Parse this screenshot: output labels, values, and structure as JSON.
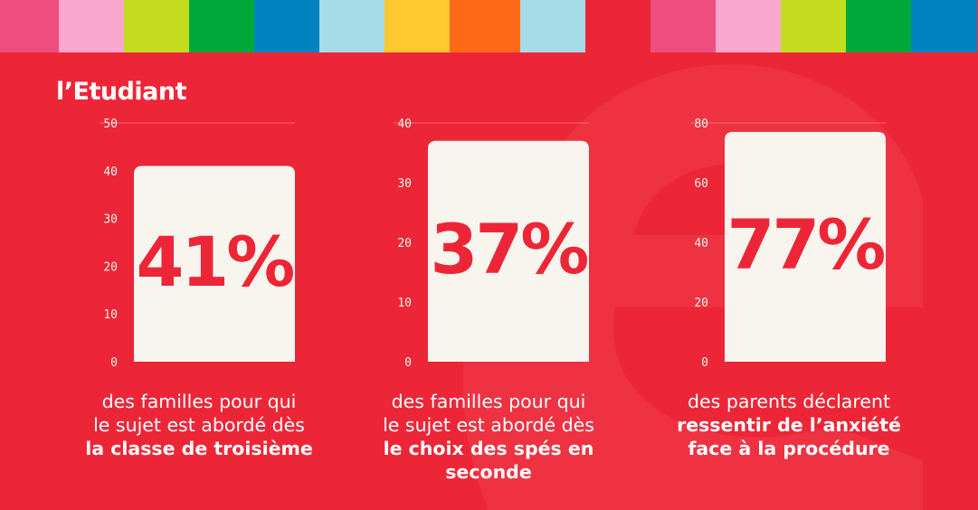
{
  "logo_text": "l’Etudiant",
  "colors": {
    "background": "#ed2637",
    "bar": "#f8f5ee",
    "stripe": [
      "#ee4d7f",
      "#f9a8d0",
      "#c3dc1f",
      "#00a83a",
      "#0084c1",
      "#a6dbe8",
      "#ffc82e",
      "#ff6a1a",
      "#a6dbe8",
      "#ed2637",
      "#ee4d7f",
      "#f9a8d0",
      "#c3dc1f",
      "#00a83a",
      "#0084c1"
    ]
  },
  "chart_data": [
    {
      "type": "bar",
      "categories": [
        "des familles pour qui le sujet est abordé dès la classe de troisième"
      ],
      "values": [
        41
      ],
      "data_label": "41%",
      "ylim": [
        0,
        50
      ],
      "yticks": [
        "0",
        "10",
        "20",
        "30",
        "40",
        "50"
      ],
      "grid": true
    },
    {
      "type": "bar",
      "categories": [
        "des familles pour qui le sujet est abordé dès le choix des spés en seconde"
      ],
      "values": [
        37
      ],
      "data_label": "37%",
      "ylim": [
        0,
        40
      ],
      "yticks": [
        "0",
        "10",
        "20",
        "30",
        "40"
      ],
      "grid": true
    },
    {
      "type": "bar",
      "categories": [
        "des parents déclarent ressentir de l’anxiété face à la procédure"
      ],
      "values": [
        77
      ],
      "data_label": "77%",
      "ylim": [
        0,
        80
      ],
      "yticks": [
        "0",
        "20",
        "40",
        "60",
        "80"
      ],
      "grid": true
    }
  ],
  "captions": [
    {
      "normal": [
        "des familles pour qui",
        "le sujet est abordé dès"
      ],
      "bold": [
        "la classe de troisième"
      ]
    },
    {
      "normal": [
        "des familles pour qui",
        "le sujet est abordé dès"
      ],
      "bold": [
        "le choix des spés en",
        "seconde"
      ]
    },
    {
      "normal": [
        "des parents déclarent"
      ],
      "bold": [
        "ressentir de l’anxiété",
        "face à la procédure"
      ]
    }
  ]
}
